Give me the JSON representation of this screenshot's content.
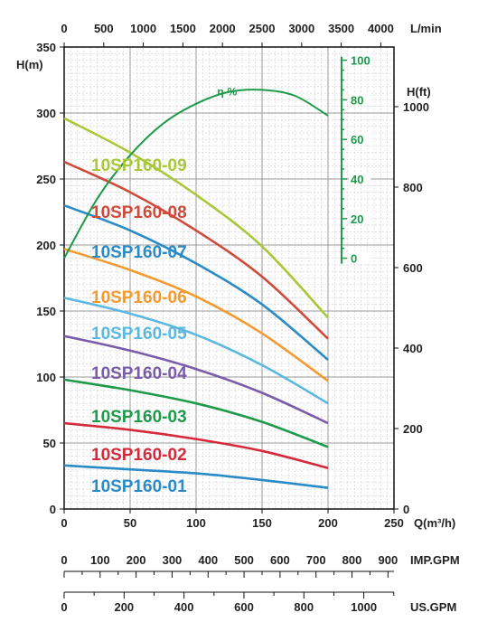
{
  "chart_data": {
    "type": "line",
    "x_axis": {
      "label": "Q(m³/h)",
      "ticks": [
        0,
        50,
        100,
        150,
        200,
        250
      ],
      "range": [
        0,
        250
      ]
    },
    "y_axis": {
      "label": "H(m)",
      "ticks": [
        0,
        50,
        100,
        150,
        200,
        250,
        300,
        350
      ],
      "range": [
        0,
        350
      ]
    },
    "top_axis": {
      "label": "L/min",
      "ticks": [
        0,
        500,
        1000,
        1500,
        2000,
        2500,
        3000,
        3500,
        4000
      ],
      "range": [
        0,
        4166.67
      ]
    },
    "right_axis": {
      "label": "H(ft)",
      "ticks": [
        0,
        200,
        400,
        600,
        800,
        1000
      ],
      "range": [
        0,
        1148.3
      ]
    },
    "imp_gpm_axis": {
      "label": "IMP.GPM",
      "ticks": [
        0,
        100,
        200,
        300,
        400,
        500,
        600,
        700,
        800,
        900
      ],
      "range": [
        0,
        916.7
      ]
    },
    "us_gpm_axis": {
      "label": "US.GPM",
      "ticks": [
        0,
        200,
        400,
        600,
        800,
        1000
      ],
      "range": [
        0,
        1100.7
      ]
    },
    "efficiency_axis": {
      "label": "η-%",
      "ticks": [
        0,
        20,
        40,
        60,
        80,
        100
      ],
      "h_range": [
        190,
        340
      ]
    },
    "grid": true,
    "series": [
      {
        "name": "10SP160-01",
        "color": "#2b8bc6",
        "x": [
          0,
          50,
          100,
          150,
          200
        ],
        "y": [
          33,
          30,
          27,
          22,
          16
        ]
      },
      {
        "name": "10SP160-02",
        "color": "#d42a3a",
        "x": [
          0,
          50,
          100,
          150,
          200
        ],
        "y": [
          65,
          60,
          53,
          44,
          31
        ]
      },
      {
        "name": "10SP160-03",
        "color": "#1e9a4a",
        "x": [
          0,
          50,
          100,
          150,
          200
        ],
        "y": [
          98,
          90,
          80,
          66,
          47
        ]
      },
      {
        "name": "10SP160-04",
        "color": "#7b5ca8",
        "x": [
          0,
          50,
          100,
          150,
          200
        ],
        "y": [
          131,
          120,
          106,
          88,
          65
        ]
      },
      {
        "name": "10SP160-05",
        "color": "#5bb8e0",
        "x": [
          0,
          50,
          100,
          150,
          200
        ],
        "y": [
          160,
          148,
          132,
          109,
          80
        ]
      },
      {
        "name": "10SP160-06",
        "color": "#f39a30",
        "x": [
          0,
          50,
          100,
          150,
          200
        ],
        "y": [
          197,
          181,
          161,
          133,
          97
        ]
      },
      {
        "name": "10SP160-07",
        "color": "#2b8bc6",
        "x": [
          0,
          50,
          100,
          150,
          200
        ],
        "y": [
          230,
          211,
          186,
          155,
          113
        ]
      },
      {
        "name": "10SP160-08",
        "color": "#d04a3a",
        "x": [
          0,
          50,
          100,
          150,
          200
        ],
        "y": [
          263,
          240,
          211,
          176,
          129
        ]
      },
      {
        "name": "10SP160-09",
        "color": "#a8c838",
        "x": [
          0,
          50,
          100,
          150,
          200
        ],
        "y": [
          296,
          270,
          238,
          199,
          145
        ]
      }
    ],
    "efficiency": {
      "name": "η-%",
      "color": "#1e9a4a",
      "x": [
        0,
        25,
        50,
        75,
        100,
        125,
        150,
        175,
        200
      ],
      "y": [
        0,
        30,
        52,
        68,
        78,
        84,
        85,
        82,
        72
      ]
    }
  }
}
